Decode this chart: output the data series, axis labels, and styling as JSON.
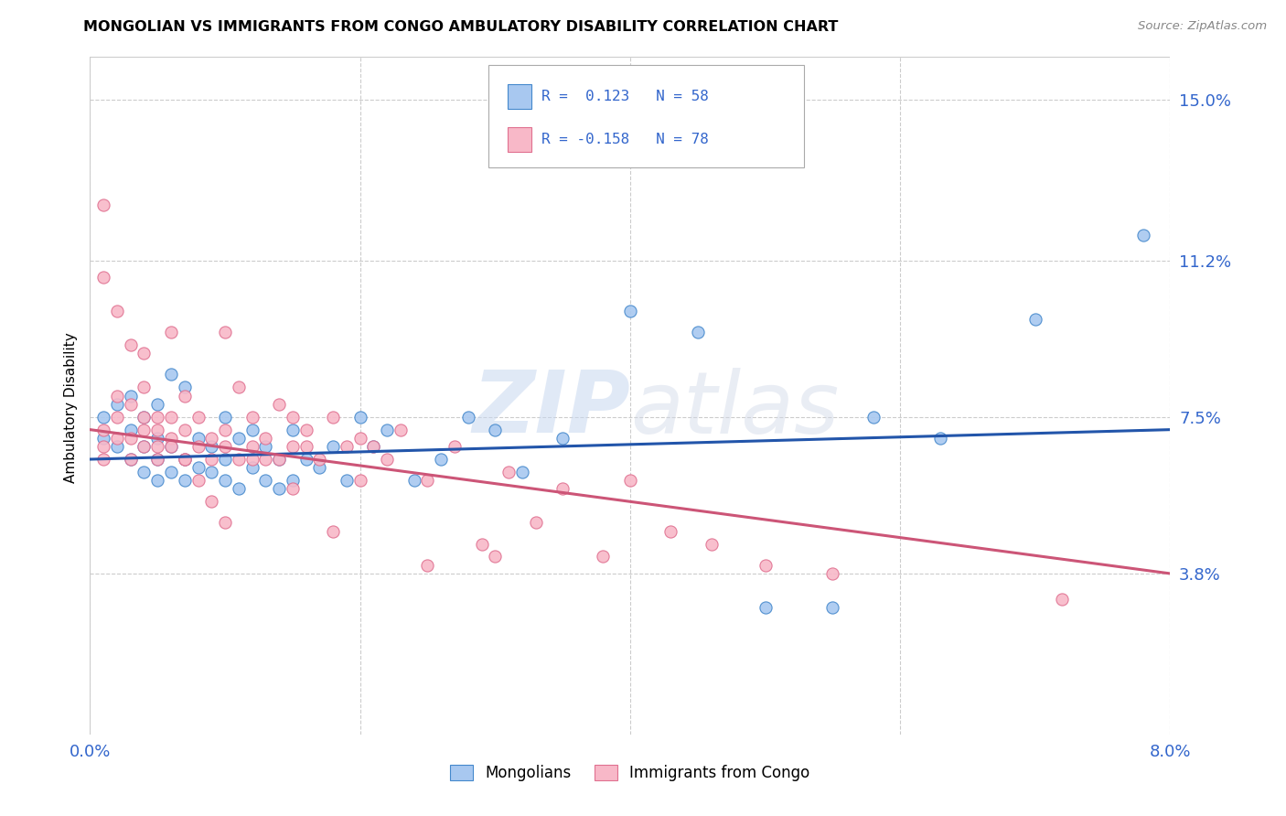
{
  "title": "MONGOLIAN VS IMMIGRANTS FROM CONGO AMBULATORY DISABILITY CORRELATION CHART",
  "source": "Source: ZipAtlas.com",
  "ylabel": "Ambulatory Disability",
  "ytick_labels": [
    "3.8%",
    "7.5%",
    "11.2%",
    "15.0%"
  ],
  "ytick_values": [
    0.038,
    0.075,
    0.112,
    0.15
  ],
  "xlim": [
    0.0,
    0.08
  ],
  "ylim": [
    0.0,
    0.16
  ],
  "color_mongolian_fill": "#A8C8F0",
  "color_mongolian_edge": "#4488CC",
  "color_congo_fill": "#F8B8C8",
  "color_congo_edge": "#E07090",
  "color_line_mongolian": "#2255AA",
  "color_line_congo": "#CC5577",
  "color_text_blue": "#3366CC",
  "background_color": "#FFFFFF",
  "grid_color": "#CCCCCC",
  "watermark_zip": "ZIP",
  "watermark_atlas": "atlas",
  "mongolian_x": [
    0.001,
    0.001,
    0.002,
    0.002,
    0.003,
    0.003,
    0.003,
    0.004,
    0.004,
    0.004,
    0.005,
    0.005,
    0.005,
    0.005,
    0.006,
    0.006,
    0.006,
    0.007,
    0.007,
    0.007,
    0.008,
    0.008,
    0.009,
    0.009,
    0.01,
    0.01,
    0.01,
    0.011,
    0.011,
    0.012,
    0.012,
    0.013,
    0.013,
    0.014,
    0.014,
    0.015,
    0.015,
    0.016,
    0.017,
    0.018,
    0.019,
    0.02,
    0.021,
    0.022,
    0.024,
    0.026,
    0.028,
    0.03,
    0.032,
    0.035,
    0.04,
    0.045,
    0.05,
    0.055,
    0.058,
    0.063,
    0.07,
    0.078
  ],
  "mongolian_y": [
    0.07,
    0.075,
    0.068,
    0.078,
    0.065,
    0.072,
    0.08,
    0.062,
    0.068,
    0.075,
    0.06,
    0.065,
    0.07,
    0.078,
    0.062,
    0.068,
    0.085,
    0.06,
    0.065,
    0.082,
    0.063,
    0.07,
    0.062,
    0.068,
    0.06,
    0.065,
    0.075,
    0.058,
    0.07,
    0.063,
    0.072,
    0.06,
    0.068,
    0.058,
    0.065,
    0.06,
    0.072,
    0.065,
    0.063,
    0.068,
    0.06,
    0.075,
    0.068,
    0.072,
    0.06,
    0.065,
    0.075,
    0.072,
    0.062,
    0.07,
    0.1,
    0.095,
    0.03,
    0.03,
    0.075,
    0.07,
    0.098,
    0.118
  ],
  "congo_x": [
    0.001,
    0.001,
    0.001,
    0.002,
    0.002,
    0.002,
    0.003,
    0.003,
    0.003,
    0.004,
    0.004,
    0.004,
    0.004,
    0.005,
    0.005,
    0.005,
    0.006,
    0.006,
    0.006,
    0.007,
    0.007,
    0.007,
    0.008,
    0.008,
    0.009,
    0.009,
    0.01,
    0.01,
    0.01,
    0.011,
    0.011,
    0.012,
    0.012,
    0.013,
    0.013,
    0.014,
    0.014,
    0.015,
    0.015,
    0.016,
    0.016,
    0.017,
    0.018,
    0.019,
    0.02,
    0.021,
    0.022,
    0.023,
    0.025,
    0.027,
    0.029,
    0.031,
    0.033,
    0.035,
    0.038,
    0.04,
    0.043,
    0.046,
    0.05,
    0.055,
    0.001,
    0.001,
    0.002,
    0.003,
    0.004,
    0.005,
    0.006,
    0.007,
    0.008,
    0.009,
    0.01,
    0.012,
    0.015,
    0.018,
    0.02,
    0.025,
    0.03,
    0.072
  ],
  "congo_y": [
    0.125,
    0.072,
    0.068,
    0.075,
    0.07,
    0.08,
    0.07,
    0.078,
    0.065,
    0.072,
    0.068,
    0.075,
    0.082,
    0.068,
    0.075,
    0.065,
    0.07,
    0.075,
    0.068,
    0.072,
    0.065,
    0.08,
    0.068,
    0.075,
    0.065,
    0.07,
    0.072,
    0.068,
    0.095,
    0.065,
    0.082,
    0.068,
    0.075,
    0.065,
    0.07,
    0.065,
    0.078,
    0.068,
    0.075,
    0.068,
    0.072,
    0.065,
    0.075,
    0.068,
    0.07,
    0.068,
    0.065,
    0.072,
    0.06,
    0.068,
    0.045,
    0.062,
    0.05,
    0.058,
    0.042,
    0.06,
    0.048,
    0.045,
    0.04,
    0.038,
    0.108,
    0.065,
    0.1,
    0.092,
    0.09,
    0.072,
    0.095,
    0.065,
    0.06,
    0.055,
    0.05,
    0.065,
    0.058,
    0.048,
    0.06,
    0.04,
    0.042,
    0.032
  ],
  "mongo_line_y0": 0.065,
  "mongo_line_y1": 0.072,
  "congo_line_y0": 0.072,
  "congo_line_y1": 0.038
}
